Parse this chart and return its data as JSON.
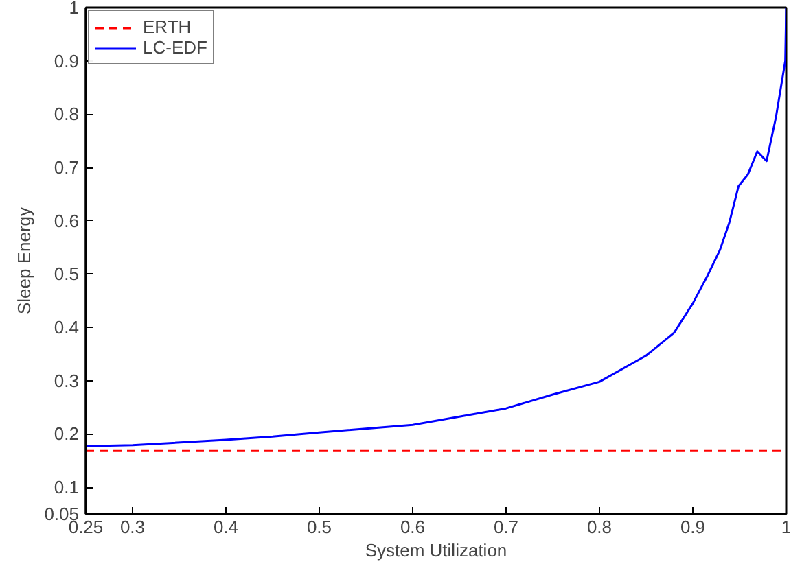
{
  "chart_data": {
    "type": "line",
    "xlabel": "System Utilization",
    "ylabel": "Sleep Energy",
    "xlim": [
      0.25,
      1
    ],
    "ylim": [
      0.05,
      1
    ],
    "xticks": [
      0.25,
      0.3,
      0.4,
      0.5,
      0.6,
      0.7,
      0.8,
      0.9,
      1
    ],
    "yticks": [
      0.05,
      0.1,
      0.2,
      0.3,
      0.4,
      0.5,
      0.6,
      0.7,
      0.8,
      0.9,
      1
    ],
    "grid": false,
    "legend": "top left",
    "marker": "none",
    "series": [
      {
        "name": "ERTH",
        "color": "#ff0000",
        "line_style": "dashed",
        "x": [
          0.25,
          1
        ],
        "values": [
          0.168,
          0.168
        ]
      },
      {
        "name": "LC-EDF",
        "color": "#0000ff",
        "line_style": "solid",
        "x": [
          0.25,
          0.3,
          0.4,
          0.45,
          0.5,
          0.6,
          0.7,
          0.75,
          0.8,
          0.85,
          0.88,
          0.9,
          0.916,
          0.929,
          0.939,
          0.949,
          0.959,
          0.969,
          0.979,
          0.989,
          0.999,
          1
        ],
        "values": [
          0.177,
          0.179,
          0.189,
          0.195,
          0.203,
          0.217,
          0.248,
          0.274,
          0.298,
          0.347,
          0.39,
          0.445,
          0.498,
          0.545,
          0.596,
          0.665,
          0.687,
          0.73,
          0.712,
          0.794,
          0.9,
          1
        ]
      }
    ]
  }
}
